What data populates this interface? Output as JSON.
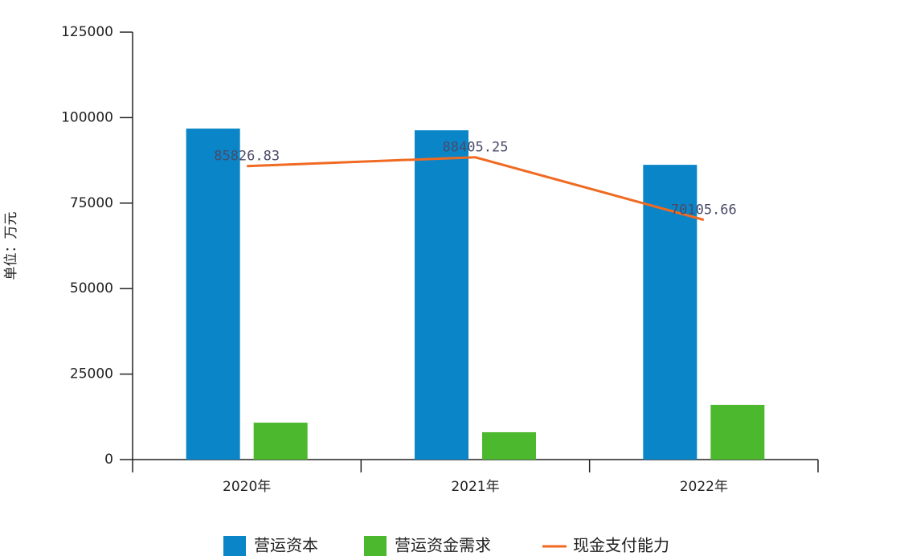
{
  "chart_data": {
    "type": "bar",
    "y_label": "单位：万元",
    "categories": [
      "2020年",
      "2021年",
      "2022年"
    ],
    "series": [
      {
        "name": "营运资本",
        "type": "bar",
        "color": "#0a86c8",
        "values": [
          96800,
          96300,
          86200
        ]
      },
      {
        "name": "营运资金需求",
        "type": "bar",
        "color": "#4cb82e",
        "values": [
          10800,
          8000,
          16000
        ]
      },
      {
        "name": "现金支付能力",
        "type": "line",
        "color": "#f06a22",
        "values": [
          85826.83,
          88405.25,
          70105.66
        ]
      }
    ],
    "ylim": [
      0,
      125000
    ],
    "yticks": [
      0,
      25000,
      50000,
      75000,
      100000,
      125000
    ],
    "grid": false,
    "legend": "bottom"
  }
}
